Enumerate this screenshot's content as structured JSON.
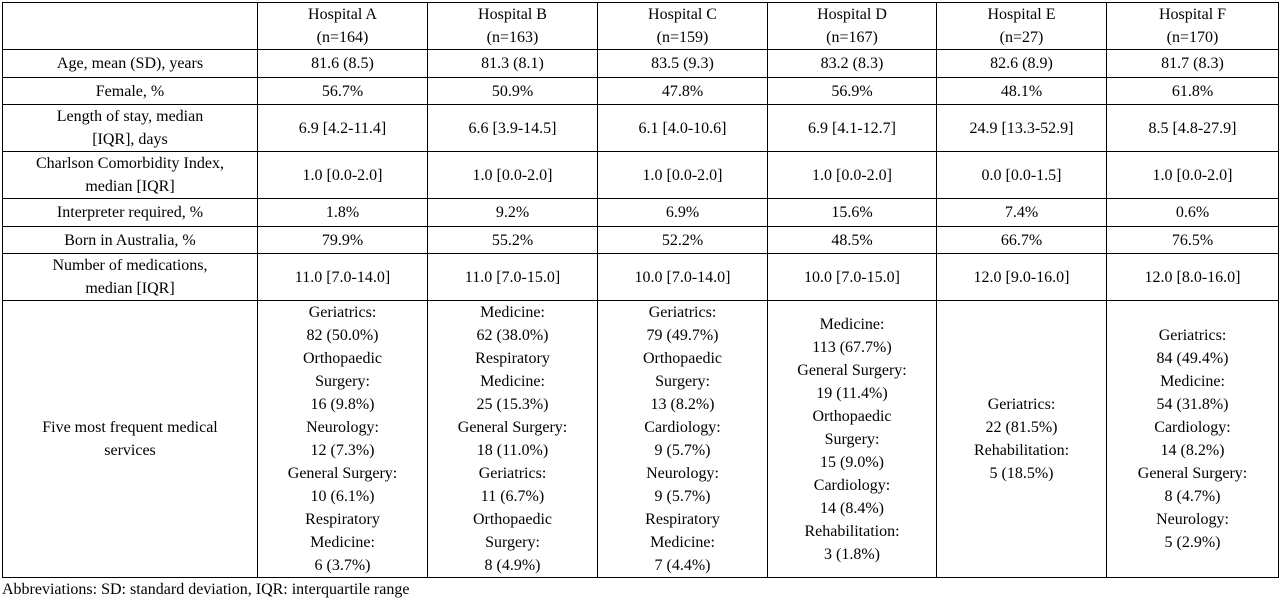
{
  "table": {
    "columns": [
      {
        "name": "Hospital A",
        "n": "(n=164)"
      },
      {
        "name": "Hospital B",
        "n": "(n=163)"
      },
      {
        "name": "Hospital C",
        "n": "(n=159)"
      },
      {
        "name": "Hospital D",
        "n": "(n=167)"
      },
      {
        "name": "Hospital E",
        "n": "(n=27)"
      },
      {
        "name": "Hospital F",
        "n": "(n=170)"
      }
    ],
    "rows": [
      {
        "label": [
          "Age, mean (SD), years"
        ],
        "values": [
          "81.6 (8.5)",
          "81.3 (8.1)",
          "83.5 (9.3)",
          "83.2 (8.3)",
          "82.6 (8.9)",
          "81.7 (8.3)"
        ]
      },
      {
        "label": [
          "Female, %"
        ],
        "values": [
          "56.7%",
          "50.9%",
          "47.8%",
          "56.9%",
          "48.1%",
          "61.8%"
        ]
      },
      {
        "label": [
          "Length of stay, median",
          "[IQR], days"
        ],
        "values": [
          "6.9 [4.2-11.4]",
          "6.6 [3.9-14.5]",
          "6.1 [4.0-10.6]",
          "6.9 [4.1-12.7]",
          "24.9 [13.3-52.9]",
          "8.5 [4.8-27.9]"
        ]
      },
      {
        "label": [
          "Charlson Comorbidity Index,",
          "median [IQR]"
        ],
        "values": [
          "1.0 [0.0-2.0]",
          "1.0 [0.0-2.0]",
          "1.0 [0.0-2.0]",
          "1.0 [0.0-2.0]",
          "0.0 [0.0-1.5]",
          "1.0 [0.0-2.0]"
        ]
      },
      {
        "label": [
          "Interpreter required, %"
        ],
        "values": [
          "1.8%",
          "9.2%",
          "6.9%",
          "15.6%",
          "7.4%",
          "0.6%"
        ]
      },
      {
        "label": [
          "Born in Australia, %"
        ],
        "values": [
          "79.9%",
          "55.2%",
          "52.2%",
          "48.5%",
          "66.7%",
          "76.5%"
        ]
      },
      {
        "label": [
          "Number of medications,",
          "median [IQR]"
        ],
        "values": [
          "11.0 [7.0-14.0]",
          "11.0 [7.0-15.0]",
          "10.0 [7.0-14.0]",
          "10.0 [7.0-15.0]",
          "12.0 [9.0-16.0]",
          "12.0 [8.0-16.0]"
        ]
      }
    ],
    "services": {
      "label": [
        "Five most frequent medical",
        "services"
      ],
      "values": [
        [
          "Geriatrics:",
          "82 (50.0%)",
          "Orthopaedic",
          "Surgery:",
          "16 (9.8%)",
          "Neurology:",
          "12 (7.3%)",
          "General Surgery:",
          "10 (6.1%)",
          "Respiratory",
          "Medicine:",
          "6 (3.7%)"
        ],
        [
          "Medicine:",
          "62 (38.0%)",
          "Respiratory",
          "Medicine:",
          "25 (15.3%)",
          "General Surgery:",
          "18 (11.0%)",
          "Geriatrics:",
          "11 (6.7%)",
          "Orthopaedic",
          "Surgery:",
          "8 (4.9%)"
        ],
        [
          "Geriatrics:",
          "79 (49.7%)",
          "Orthopaedic",
          "Surgery:",
          "13 (8.2%)",
          "Cardiology:",
          "9 (5.7%)",
          "Neurology:",
          "9 (5.7%)",
          "Respiratory",
          "Medicine:",
          "7 (4.4%)"
        ],
        [
          "Medicine:",
          "113 (67.7%)",
          "General Surgery:",
          "19 (11.4%)",
          "Orthopaedic",
          "Surgery:",
          "15 (9.0%)",
          "Cardiology:",
          "14 (8.4%)",
          "Rehabilitation:",
          "3 (1.8%)"
        ],
        [
          "Geriatrics:",
          "22 (81.5%)",
          "Rehabilitation:",
          "5 (18.5%)"
        ],
        [
          "Geriatrics:",
          "84 (49.4%)",
          "Medicine:",
          "54 (31.8%)",
          "Cardiology:",
          "14 (8.2%)",
          "General Surgery:",
          "8 (4.7%)",
          "Neurology:",
          "5 (2.9%)"
        ]
      ]
    }
  },
  "footnote": "Abbreviations: SD: standard deviation, IQR: interquartile range"
}
